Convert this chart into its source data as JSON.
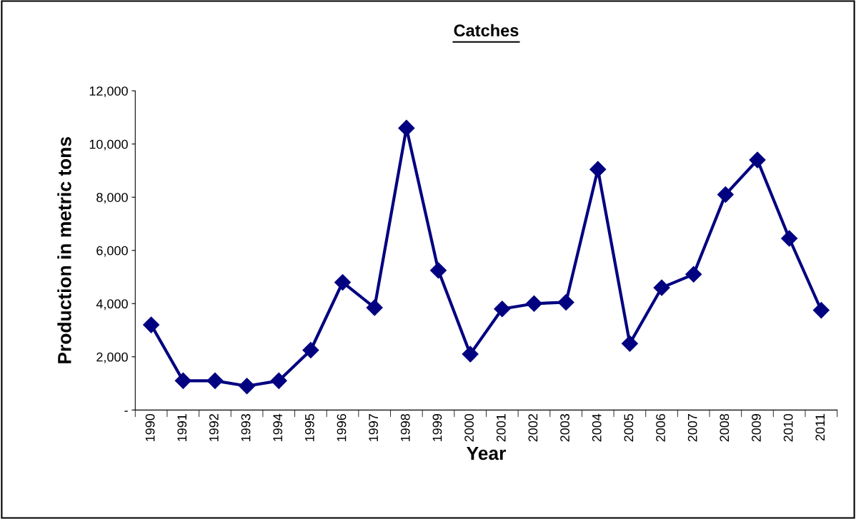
{
  "chart_data": {
    "type": "line",
    "title": "Catches",
    "xlabel": "Year",
    "ylabel": "Production in metric tons",
    "categories": [
      "1990",
      "1991",
      "1992",
      "1993",
      "1994",
      "1995",
      "1996",
      "1997",
      "1998",
      "1999",
      "2000",
      "2001",
      "2002",
      "2003",
      "2004",
      "2005",
      "2006",
      "2007",
      "2008",
      "2009",
      "2010",
      "2011"
    ],
    "series": [
      {
        "color": "#000080",
        "values": [
          3200,
          1100,
          1100,
          900,
          1100,
          2250,
          4800,
          3850,
          10600,
          5250,
          2100,
          3800,
          4000,
          4050,
          9050,
          2500,
          4600,
          5100,
          8100,
          9400,
          6450,
          3750
        ]
      }
    ],
    "ylim": [
      0,
      12000
    ],
    "yticks": [
      {
        "value": 0,
        "label": "-"
      },
      {
        "value": 2000,
        "label": "2,000"
      },
      {
        "value": 4000,
        "label": "4,000"
      },
      {
        "value": 6000,
        "label": "6,000"
      },
      {
        "value": 8000,
        "label": "8,000"
      },
      {
        "value": 10000,
        "label": "10,000"
      },
      {
        "value": 12000,
        "label": "12,000"
      }
    ],
    "marker": "diamond",
    "line_style": "solid",
    "grid": false,
    "legend": false
  }
}
